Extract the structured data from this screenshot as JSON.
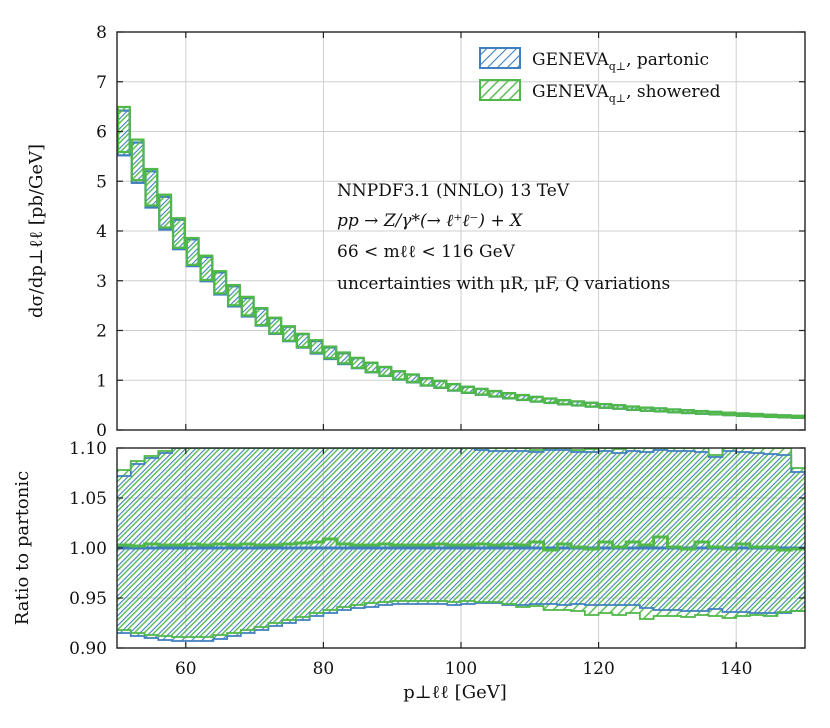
{
  "colors": {
    "partonic": "#3f7fbf",
    "showered": "#4fb848"
  },
  "legend": {
    "partonic_base": "GENEVA",
    "partonic_sub": "q⊥",
    "partonic_suffix": ", partonic",
    "showered_base": "GENEVA",
    "showered_sub": "q⊥",
    "showered_suffix": ", showered"
  },
  "annotations": {
    "line1": "NNPDF3.1 (NNLO) 13 TeV",
    "line2": "pp → Z/γ*(→ ℓ⁺ℓ⁻) + X",
    "line3": "66 < mℓℓ < 116 GeV",
    "line4": "uncertainties with μR, μF, Q variations"
  },
  "chart_data": [
    {
      "type": "area",
      "panel": "main",
      "xlabel": "p⊥ℓℓ [GeV]",
      "ylabel": "dσ/dp⊥ℓℓ [pb/GeV]",
      "xlim": [
        50,
        150
      ],
      "ylim": [
        0,
        8
      ],
      "xticks": [
        60,
        80,
        100,
        120,
        140
      ],
      "yticks": [
        0,
        1,
        2,
        3,
        4,
        5,
        6,
        7,
        8
      ],
      "grid": true,
      "legend_position": "top-right",
      "bin_edges": [
        50,
        52,
        54,
        56,
        58,
        60,
        62,
        64,
        66,
        68,
        70,
        72,
        74,
        76,
        78,
        80,
        82,
        84,
        86,
        88,
        90,
        92,
        94,
        96,
        98,
        100,
        102,
        104,
        106,
        108,
        110,
        112,
        114,
        116,
        118,
        120,
        122,
        124,
        126,
        128,
        130,
        132,
        134,
        136,
        138,
        140,
        142,
        144,
        146,
        148,
        150
      ],
      "series": [
        {
          "name": "GENEVA q⊥, partonic",
          "central": [
            6.0,
            5.4,
            4.86,
            4.38,
            3.95,
            3.58,
            3.25,
            2.96,
            2.7,
            2.48,
            2.28,
            2.1,
            1.94,
            1.8,
            1.67,
            1.55,
            1.44,
            1.35,
            1.26,
            1.18,
            1.1,
            1.04,
            0.97,
            0.92,
            0.86,
            0.81,
            0.77,
            0.73,
            0.69,
            0.655,
            0.62,
            0.59,
            0.56,
            0.535,
            0.51,
            0.485,
            0.465,
            0.44,
            0.42,
            0.405,
            0.385,
            0.37,
            0.355,
            0.34,
            0.325,
            0.31,
            0.3,
            0.285,
            0.275,
            0.265
          ],
          "upper_ratio": 1.07,
          "lower_ratio": 0.92
        },
        {
          "name": "GENEVA q⊥, showered",
          "central": [
            6.04,
            5.43,
            4.88,
            4.4,
            3.96,
            3.59,
            3.26,
            2.97,
            2.71,
            2.49,
            2.28,
            2.1,
            1.94,
            1.8,
            1.68,
            1.56,
            1.45,
            1.35,
            1.26,
            1.18,
            1.1,
            1.04,
            0.97,
            0.92,
            0.86,
            0.81,
            0.77,
            0.73,
            0.69,
            0.655,
            0.62,
            0.59,
            0.56,
            0.535,
            0.51,
            0.485,
            0.465,
            0.44,
            0.42,
            0.405,
            0.385,
            0.37,
            0.355,
            0.34,
            0.325,
            0.31,
            0.3,
            0.285,
            0.275,
            0.265
          ],
          "upper_ratio": 1.075,
          "lower_ratio": 0.925
        }
      ]
    },
    {
      "type": "area",
      "panel": "ratio",
      "ylabel": "Ratio to partonic",
      "xlabel": "p⊥ℓℓ [GeV]",
      "xlim": [
        50,
        150
      ],
      "ylim": [
        0.9,
        1.1
      ],
      "xticks": [
        60,
        80,
        100,
        120,
        140
      ],
      "yticks": [
        0.9,
        0.95,
        1.0,
        1.05,
        1.1
      ],
      "ytick_labels": [
        "0.90",
        "0.95",
        "1.00",
        "1.05",
        "1.10"
      ],
      "grid": true,
      "bin_edges": [
        50,
        52,
        54,
        56,
        58,
        60,
        62,
        64,
        66,
        68,
        70,
        72,
        74,
        76,
        78,
        80,
        82,
        84,
        86,
        88,
        90,
        92,
        94,
        96,
        98,
        100,
        102,
        104,
        106,
        108,
        110,
        112,
        114,
        116,
        118,
        120,
        122,
        124,
        126,
        128,
        130,
        132,
        134,
        136,
        138,
        140,
        142,
        144,
        146,
        148,
        150
      ],
      "series": [
        {
          "name": "GENEVA q⊥, partonic",
          "central": [
            1.0,
            1.0,
            1.0,
            1.0,
            1.0,
            1.0,
            1.0,
            1.0,
            1.0,
            1.0,
            1.0,
            1.0,
            1.0,
            1.0,
            1.0,
            1.0,
            1.0,
            1.0,
            1.0,
            1.0,
            1.0,
            1.0,
            1.0,
            1.0,
            1.0,
            1.0,
            1.0,
            1.0,
            1.0,
            1.0,
            1.0,
            1.0,
            1.0,
            1.0,
            1.0,
            1.0,
            1.0,
            1.0,
            1.0,
            1.0,
            1.0,
            1.0,
            1.0,
            1.0,
            1.0,
            1.0,
            1.0,
            1.0,
            1.0,
            1.0
          ],
          "upper": [
            1.072,
            1.084,
            1.09,
            1.095,
            1.1,
            1.1,
            1.1,
            1.1,
            1.1,
            1.1,
            1.1,
            1.1,
            1.1,
            1.1,
            1.1,
            1.1,
            1.1,
            1.1,
            1.1,
            1.1,
            1.1,
            1.1,
            1.1,
            1.1,
            1.1,
            1.1,
            1.098,
            1.097,
            1.097,
            1.097,
            1.096,
            1.098,
            1.098,
            1.096,
            1.096,
            1.097,
            1.095,
            1.097,
            1.096,
            1.098,
            1.097,
            1.097,
            1.096,
            1.091,
            1.097,
            1.096,
            1.095,
            1.094,
            1.093,
            1.076
          ],
          "lower": [
            0.915,
            0.912,
            0.91,
            0.908,
            0.907,
            0.907,
            0.907,
            0.909,
            0.912,
            0.915,
            0.918,
            0.922,
            0.925,
            0.928,
            0.932,
            0.935,
            0.938,
            0.94,
            0.941,
            0.943,
            0.944,
            0.944,
            0.944,
            0.944,
            0.943,
            0.944,
            0.945,
            0.945,
            0.943,
            0.943,
            0.944,
            0.944,
            0.943,
            0.944,
            0.943,
            0.943,
            0.943,
            0.943,
            0.94,
            0.938,
            0.938,
            0.937,
            0.937,
            0.939,
            0.936,
            0.936,
            0.935,
            0.935,
            0.935,
            0.937
          ]
        },
        {
          "name": "GENEVA q⊥, showered",
          "central": [
            1.003,
            1.002,
            1.004,
            1.003,
            1.003,
            1.004,
            1.003,
            1.004,
            1.003,
            1.004,
            1.003,
            1.003,
            1.004,
            1.005,
            1.006,
            1.009,
            1.004,
            1.003,
            1.003,
            1.004,
            1.003,
            1.003,
            1.003,
            1.004,
            1.003,
            1.003,
            1.004,
            1.003,
            1.004,
            1.003,
            1.006,
            0.998,
            1.004,
            1.001,
            0.999,
            1.006,
            1.001,
            1.006,
            1.003,
            1.011,
            1.001,
            0.999,
            1.006,
            1.001,
            0.999,
            1.004,
            1.001,
            1.001,
            0.998,
            0.999
          ],
          "upper": [
            1.078,
            1.087,
            1.092,
            1.097,
            1.1,
            1.1,
            1.1,
            1.1,
            1.1,
            1.1,
            1.1,
            1.1,
            1.1,
            1.1,
            1.1,
            1.1,
            1.1,
            1.1,
            1.1,
            1.1,
            1.1,
            1.1,
            1.1,
            1.1,
            1.1,
            1.1,
            1.1,
            1.1,
            1.1,
            1.1,
            1.098,
            1.1,
            1.1,
            1.098,
            1.099,
            1.1,
            1.099,
            1.1,
            1.1,
            1.1,
            1.1,
            1.1,
            1.1,
            1.093,
            1.1,
            1.1,
            1.1,
            1.1,
            1.1,
            1.08
          ],
          "lower": [
            0.918,
            0.915,
            0.913,
            0.912,
            0.911,
            0.911,
            0.911,
            0.913,
            0.915,
            0.918,
            0.921,
            0.925,
            0.928,
            0.931,
            0.935,
            0.938,
            0.941,
            0.943,
            0.945,
            0.946,
            0.947,
            0.947,
            0.947,
            0.947,
            0.946,
            0.947,
            0.946,
            0.946,
            0.944,
            0.941,
            0.942,
            0.938,
            0.938,
            0.937,
            0.933,
            0.935,
            0.933,
            0.935,
            0.929,
            0.932,
            0.932,
            0.931,
            0.933,
            0.932,
            0.93,
            0.932,
            0.933,
            0.932,
            0.936,
            0.937
          ]
        }
      ]
    }
  ]
}
